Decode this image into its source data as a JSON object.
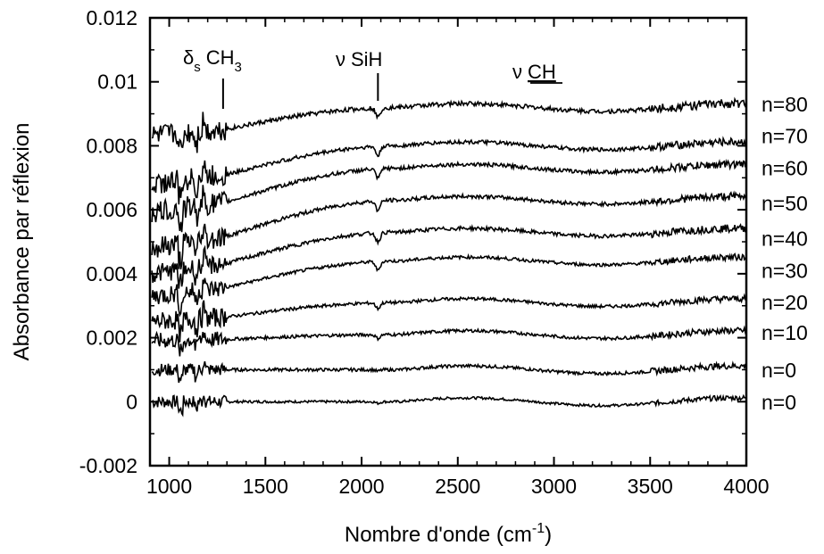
{
  "chart_data": {
    "type": "line",
    "xlabel": "Nombre d'onde (cm",
    "xlabel_sup": "-1",
    "xlabel_tail": ")",
    "ylabel": "Absorbance par réflexion",
    "xlim": [
      900,
      4000
    ],
    "ylim": [
      -0.002,
      0.012
    ],
    "x_ticks": [
      1000,
      1500,
      2000,
      2500,
      3000,
      3500,
      4000
    ],
    "x_tick_labels": [
      "1000",
      "1500",
      "2000",
      "2500",
      "3000",
      "3500",
      "4000"
    ],
    "y_ticks": [
      -0.002,
      0,
      0.002,
      0.004,
      0.006,
      0.008,
      0.01,
      0.012
    ],
    "y_tick_labels": [
      "-0.002",
      "0",
      "0.002",
      "0.004",
      "0.006",
      "0.008",
      "0.01",
      "0.012"
    ],
    "grid": false,
    "line_color": "#000000",
    "annotations": [
      {
        "symbol": "δ",
        "sub": "s",
        "text": "CH",
        "text_sub": "3",
        "x": 1280
      },
      {
        "symbol": "ν",
        "text": "SiH",
        "x": 2085
      },
      {
        "symbol": "ν",
        "text": "CH",
        "x": 2950
      }
    ],
    "series": [
      {
        "name": "n=0",
        "baseline": 0.0,
        "plateau": 0.0,
        "sih_dip": 5e-05,
        "low_noise": 0.0004,
        "noise": 4e-05,
        "label_value": -2e-05
      },
      {
        "name": "n=0",
        "baseline": 0.001,
        "plateau": 0.001,
        "sih_dip": 5e-05,
        "low_noise": 0.0004,
        "noise": 5e-05,
        "label_value": 0.00098
      },
      {
        "name": "n=10",
        "baseline": 0.0019,
        "plateau": 0.0021,
        "sih_dip": 0.00012,
        "low_noise": 0.0005,
        "noise": 5e-05,
        "label_value": 0.00215
      },
      {
        "name": "n=20",
        "baseline": 0.0025,
        "plateau": 0.0031,
        "sih_dip": 0.00018,
        "low_noise": 0.0006,
        "noise": 5e-05,
        "label_value": 0.0031
      },
      {
        "name": "n=30",
        "baseline": 0.0033,
        "plateau": 0.0044,
        "sih_dip": 0.00028,
        "low_noise": 0.0006,
        "noise": 5e-05,
        "label_value": 0.0041
      },
      {
        "name": "n=40",
        "baseline": 0.004,
        "plateau": 0.0053,
        "sih_dip": 0.00028,
        "low_noise": 0.0006,
        "noise": 6e-05,
        "label_value": 0.0051
      },
      {
        "name": "n=50",
        "baseline": 0.0048,
        "plateau": 0.0063,
        "sih_dip": 0.0003,
        "low_noise": 0.0007,
        "noise": 6e-05,
        "label_value": 0.0062
      },
      {
        "name": "n=60",
        "baseline": 0.0059,
        "plateau": 0.0073,
        "sih_dip": 0.0003,
        "low_noise": 0.0007,
        "noise": 6e-05,
        "label_value": 0.0073
      },
      {
        "name": "n=70",
        "baseline": 0.0068,
        "plateau": 0.008,
        "sih_dip": 0.0003,
        "low_noise": 0.0007,
        "noise": 6e-05,
        "label_value": 0.0083
      },
      {
        "name": "n=80",
        "baseline": 0.0083,
        "plateau": 0.0092,
        "sih_dip": 0.0003,
        "low_noise": 0.0007,
        "noise": 7e-05,
        "label_value": 0.0093
      }
    ]
  }
}
